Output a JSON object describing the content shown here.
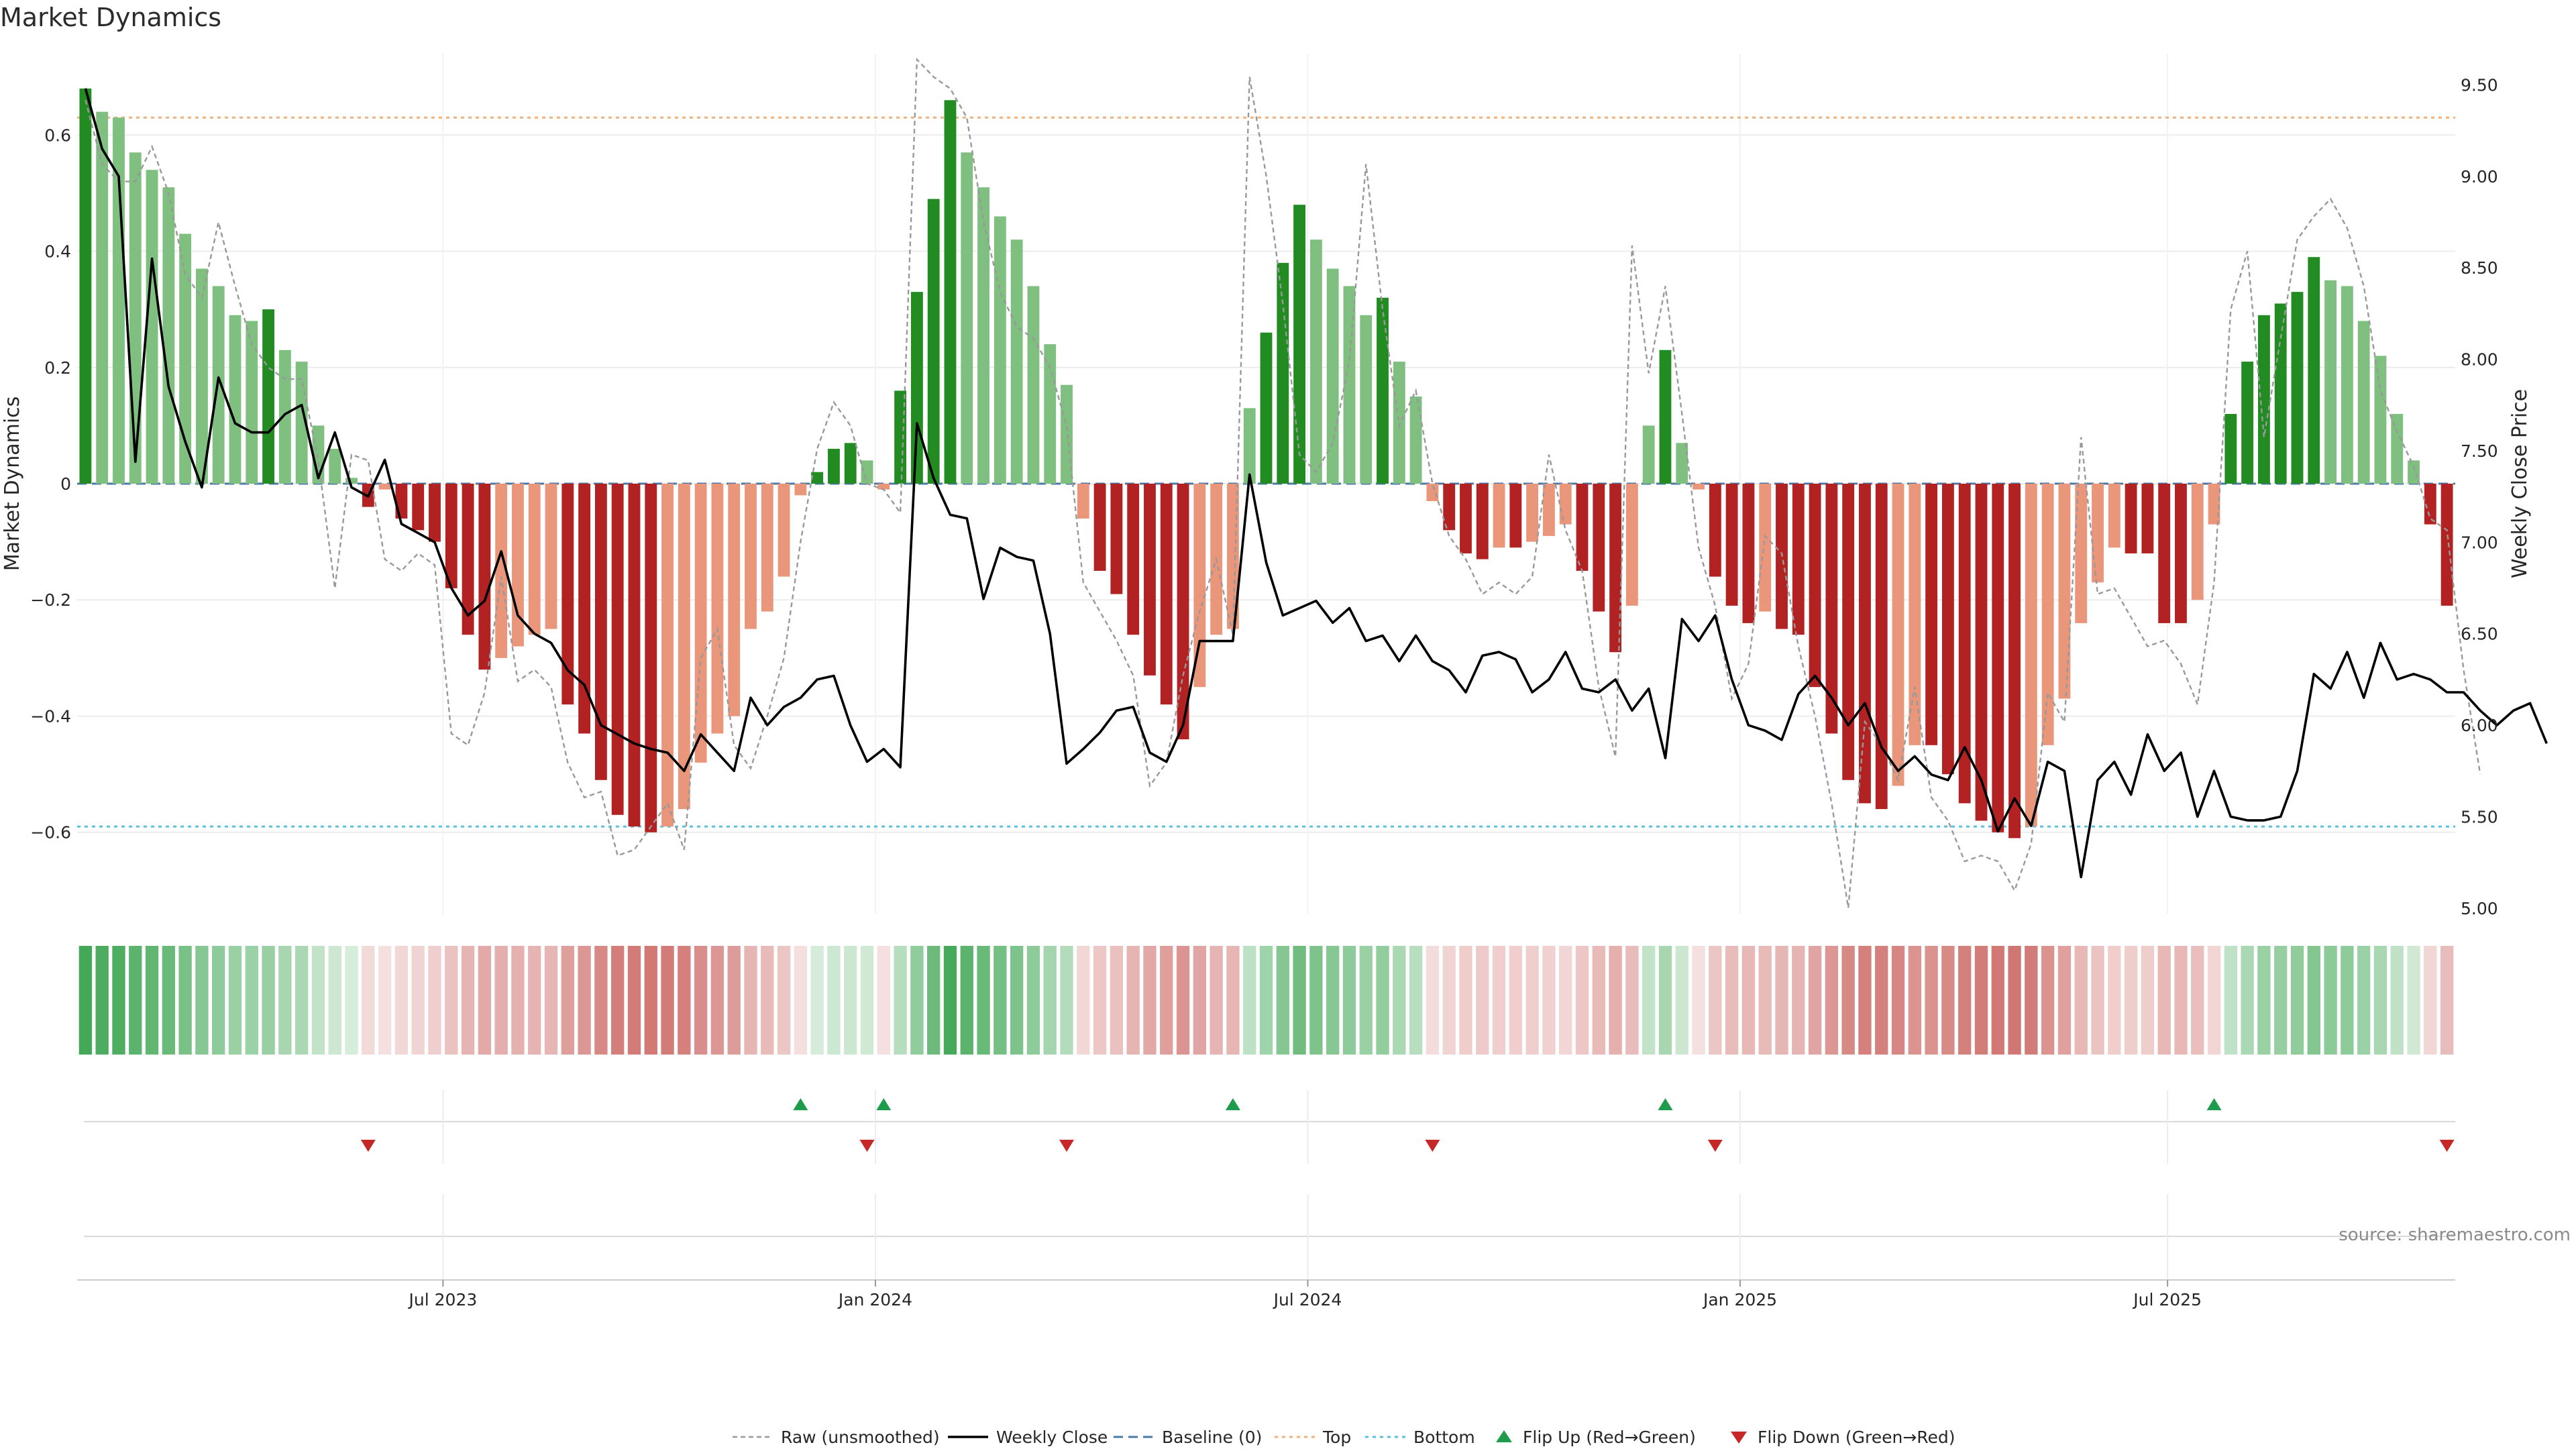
{
  "chart_data": {
    "type": "bar",
    "title": "Market Dynamics",
    "ylabel_left": "Market Dynamics",
    "ylabel_right": "Weekly Close Price",
    "ylim_left": [
      -0.74,
      0.74
    ],
    "ylim_right": [
      4.97,
      9.67
    ],
    "yticks_left": [
      {
        "v": 0.6,
        "label": "0.6"
      },
      {
        "v": 0.4,
        "label": "0.4"
      },
      {
        "v": 0.2,
        "label": "0.2"
      },
      {
        "v": 0,
        "label": "0"
      },
      {
        "v": -0.2,
        "label": "−0.2"
      },
      {
        "v": -0.4,
        "label": "−0.4"
      },
      {
        "v": -0.6,
        "label": "−0.6"
      }
    ],
    "yticks_right": [
      {
        "v": 9.5,
        "label": "9.50"
      },
      {
        "v": 9.0,
        "label": "9.00"
      },
      {
        "v": 8.5,
        "label": "8.50"
      },
      {
        "v": 8.0,
        "label": "8.00"
      },
      {
        "v": 7.5,
        "label": "7.50"
      },
      {
        "v": 7.0,
        "label": "7.00"
      },
      {
        "v": 6.5,
        "label": "6.50"
      },
      {
        "v": 6.0,
        "label": "6.00"
      },
      {
        "v": 5.5,
        "label": "5.50"
      },
      {
        "v": 5.0,
        "label": "5.00"
      }
    ],
    "xticks": [
      {
        "i": 21.5,
        "label": "Jul 2023"
      },
      {
        "i": 47.5,
        "label": "Jan 2024"
      },
      {
        "i": 73.5,
        "label": "Jul 2024"
      },
      {
        "i": 99.5,
        "label": "Jan 2025"
      },
      {
        "i": 125.2,
        "label": "Jul 2025"
      }
    ],
    "top_line": 0.63,
    "bottom_line": -0.59,
    "baseline": 0,
    "colors": {
      "strong_green": "#228b22",
      "light_green": "#7fbf7f",
      "strong_red": "#b22222",
      "light_red": "#e9967a",
      "close": "#000000",
      "raw": "#999999",
      "top": "#f0b27a",
      "bottom": "#5bc0de",
      "baseline": "#4a78a8",
      "flip_up": "#1e9b4b",
      "flip_down": "#c62828",
      "heat_green": "#43a857",
      "heat_red": "#cd6b67"
    },
    "series": [
      {
        "name": "Market Dynamics (smoothed)",
        "values": [
          0.68,
          0.64,
          0.63,
          0.57,
          0.54,
          0.51,
          0.43,
          0.37,
          0.34,
          0.29,
          0.28,
          0.3,
          0.23,
          0.21,
          0.1,
          0.06,
          0.01,
          -0.04,
          -0.01,
          -0.06,
          -0.08,
          -0.1,
          -0.18,
          -0.26,
          -0.32,
          -0.3,
          -0.28,
          -0.26,
          -0.25,
          -0.38,
          -0.43,
          -0.51,
          -0.57,
          -0.59,
          -0.6,
          -0.59,
          -0.56,
          -0.48,
          -0.43,
          -0.4,
          -0.25,
          -0.22,
          -0.16,
          -0.02,
          0.02,
          0.06,
          0.07,
          0.04,
          -0.01,
          0.16,
          0.33,
          0.49,
          0.66,
          0.57,
          0.51,
          0.46,
          0.42,
          0.34,
          0.24,
          0.17,
          -0.06,
          -0.15,
          -0.19,
          -0.26,
          -0.33,
          -0.38,
          -0.44,
          -0.35,
          -0.26,
          -0.25,
          0.13,
          0.26,
          0.38,
          0.48,
          0.42,
          0.37,
          0.34,
          0.29,
          0.32,
          0.21,
          0.15,
          -0.03,
          -0.08,
          -0.12,
          -0.13,
          -0.11,
          -0.11,
          -0.1,
          -0.09,
          -0.07,
          -0.15,
          -0.22,
          -0.29,
          -0.21,
          0.1,
          0.23,
          0.07,
          -0.01,
          -0.16,
          -0.21,
          -0.24,
          -0.22,
          -0.25,
          -0.26,
          -0.35,
          -0.43,
          -0.51,
          -0.55,
          -0.56,
          -0.52,
          -0.45,
          -0.45,
          -0.5,
          -0.55,
          -0.58,
          -0.6,
          -0.61,
          -0.59,
          -0.45,
          -0.37,
          -0.24,
          -0.17,
          -0.11,
          -0.12,
          -0.12,
          -0.24,
          -0.24,
          -0.2,
          -0.07,
          0.12,
          0.21,
          0.29,
          0.31,
          0.33,
          0.39,
          0.35,
          0.34,
          0.28,
          0.22,
          0.12,
          0.04,
          -0.07,
          -0.21
        ]
      },
      {
        "name": "Weekly Close",
        "values": [
          9.48,
          9.15,
          9.0,
          7.44,
          8.55,
          7.85,
          7.55,
          7.3,
          7.9,
          7.65,
          7.6,
          7.6,
          7.7,
          7.75,
          7.35,
          7.6,
          7.3,
          7.25,
          7.45,
          7.1,
          7.05,
          7.0,
          6.75,
          6.6,
          6.68,
          6.95,
          6.6,
          6.5,
          6.45,
          6.3,
          6.22,
          6.0,
          5.95,
          5.9,
          5.87,
          5.85,
          5.75,
          5.95,
          5.85,
          5.75,
          6.15,
          6.0,
          6.1,
          6.15,
          6.25,
          6.27,
          6.0,
          5.8,
          5.87,
          5.77,
          7.65,
          7.35,
          7.15,
          7.13,
          6.69,
          6.97,
          6.92,
          6.9,
          6.5,
          5.79,
          5.87,
          5.96,
          6.08,
          6.1,
          5.85,
          5.8,
          6.0,
          6.46,
          6.46,
          6.46,
          7.37,
          6.89,
          6.6,
          6.64,
          6.68,
          6.56,
          6.64,
          6.46,
          6.49,
          6.35,
          6.49,
          6.35,
          6.3,
          6.18,
          6.38,
          6.4,
          6.36,
          6.18,
          6.25,
          6.4,
          6.2,
          6.18,
          6.25,
          6.08,
          6.2,
          5.82,
          6.58,
          6.46,
          6.6,
          6.25,
          6.0,
          5.97,
          5.92,
          6.17,
          6.27,
          6.15,
          6.0,
          6.12,
          5.88,
          5.75,
          5.83,
          5.73,
          5.7,
          5.88,
          5.7,
          5.42,
          5.6,
          5.45,
          5.8,
          5.75,
          5.17,
          5.7,
          5.8,
          5.62,
          5.95,
          5.75,
          5.85,
          5.5,
          5.75,
          5.5,
          5.48,
          5.48,
          5.5,
          5.75,
          6.28,
          6.2,
          6.4,
          6.15,
          6.45,
          6.25,
          6.28,
          6.25,
          6.18,
          6.18,
          6.08,
          6.0,
          6.08,
          6.12,
          5.9
        ]
      },
      {
        "name": "Raw (unsmoothed)",
        "values": [
          0.66,
          0.55,
          0.52,
          0.52,
          0.58,
          0.5,
          0.36,
          0.32,
          0.45,
          0.34,
          0.24,
          0.2,
          0.18,
          0.18,
          0.04,
          -0.18,
          0.05,
          0.04,
          -0.13,
          -0.15,
          -0.12,
          -0.14,
          -0.43,
          -0.45,
          -0.36,
          -0.16,
          -0.34,
          -0.32,
          -0.35,
          -0.48,
          -0.54,
          -0.53,
          -0.64,
          -0.63,
          -0.59,
          -0.55,
          -0.63,
          -0.3,
          -0.25,
          -0.45,
          -0.49,
          -0.4,
          -0.3,
          -0.1,
          0.06,
          0.14,
          0.1,
          0.0,
          -0.01,
          -0.05,
          0.73,
          0.7,
          0.68,
          0.63,
          0.45,
          0.33,
          0.27,
          0.25,
          0.2,
          0.1,
          -0.17,
          -0.22,
          -0.27,
          -0.33,
          -0.52,
          -0.48,
          -0.33,
          -0.22,
          -0.13,
          -0.26,
          0.7,
          0.53,
          0.31,
          0.05,
          0.02,
          0.07,
          0.21,
          0.55,
          0.3,
          0.1,
          0.16,
          0.0,
          -0.09,
          -0.13,
          -0.19,
          -0.17,
          -0.19,
          -0.16,
          0.05,
          -0.08,
          -0.15,
          -0.35,
          -0.47,
          0.41,
          0.19,
          0.34,
          0.12,
          -0.11,
          -0.21,
          -0.37,
          -0.31,
          -0.09,
          -0.12,
          -0.28,
          -0.4,
          -0.55,
          -0.73,
          -0.41,
          -0.45,
          -0.51,
          -0.35,
          -0.54,
          -0.58,
          -0.65,
          -0.64,
          -0.65,
          -0.7,
          -0.62,
          -0.36,
          -0.41,
          0.08,
          -0.19,
          -0.18,
          -0.23,
          -0.28,
          -0.27,
          -0.31,
          -0.38,
          -0.17,
          0.3,
          0.4,
          0.08,
          0.25,
          0.42,
          0.46,
          0.49,
          0.44,
          0.34,
          0.16,
          0.09,
          0.03,
          -0.06,
          -0.08,
          -0.32,
          -0.5
        ]
      }
    ],
    "flip_up_indices": [
      43,
      48,
      69,
      95,
      128
    ],
    "flip_down_indices": [
      17,
      47,
      59,
      81,
      98,
      142
    ],
    "legend": [
      {
        "key": "raw",
        "label": "Raw (unsmoothed)"
      },
      {
        "key": "close",
        "label": "Weekly Close"
      },
      {
        "key": "baseline",
        "label": "Baseline (0)"
      },
      {
        "key": "top",
        "label": "Top"
      },
      {
        "key": "bottom",
        "label": "Bottom"
      },
      {
        "key": "flip_up",
        "label": "Flip Up (Red→Green)"
      },
      {
        "key": "flip_down",
        "label": "Flip Down (Green→Red)"
      }
    ],
    "source": "source: sharemaestro.com"
  }
}
